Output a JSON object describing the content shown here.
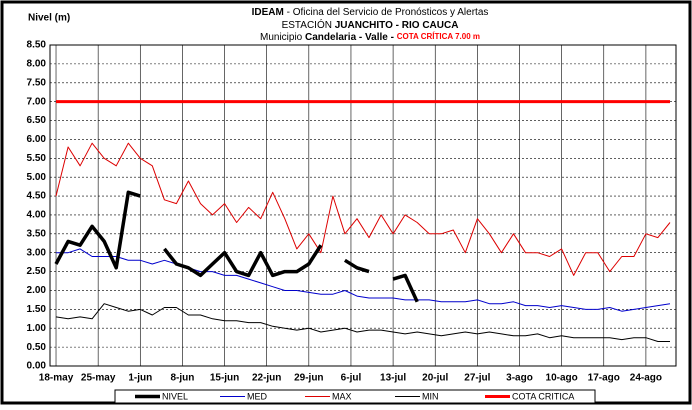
{
  "chart_data": {
    "type": "line",
    "title": {
      "l1a": "IDEAM",
      "l1b": " - Oficina del Servicio de Pronósticos y Alertas",
      "l2a": "ESTACIÓN ",
      "l2b": "JUANCHITO - RIO CAUCA",
      "l3a": "Municipio ",
      "l3b": "Candelaria - Valle",
      "l3c": " - ",
      "l3d": "COTA CRÍTICA 7.00 m"
    },
    "y_label": "Nivel (m)",
    "x": [
      0,
      2,
      4,
      6,
      8,
      10,
      12,
      14,
      16,
      18,
      20,
      22,
      24,
      26,
      28,
      30,
      32,
      34,
      36,
      38,
      40,
      42,
      44,
      46,
      48,
      50,
      52,
      54,
      56,
      58,
      60,
      62,
      64,
      66,
      68,
      70,
      72,
      74,
      76,
      78,
      80,
      82,
      84,
      86,
      88,
      90,
      92,
      94,
      96,
      98,
      100,
      102
    ],
    "xlim": [
      -1,
      103
    ],
    "xticks": [
      {
        "value": 0,
        "label": "18-may"
      },
      {
        "value": 7,
        "label": "25-may"
      },
      {
        "value": 14,
        "label": "1-jun"
      },
      {
        "value": 21,
        "label": "8-jun"
      },
      {
        "value": 28,
        "label": "15-jun"
      },
      {
        "value": 35,
        "label": "22-jun"
      },
      {
        "value": 42,
        "label": "29-jun"
      },
      {
        "value": 49,
        "label": "6-jul"
      },
      {
        "value": 56,
        "label": "13-jul"
      },
      {
        "value": 63,
        "label": "20-jul"
      },
      {
        "value": 70,
        "label": "27-jul"
      },
      {
        "value": 77,
        "label": "3-ago"
      },
      {
        "value": 84,
        "label": "10-ago"
      },
      {
        "value": 91,
        "label": "17-ago"
      },
      {
        "value": 98,
        "label": "24-ago"
      }
    ],
    "ylim": [
      0,
      8.5
    ],
    "yticks": [
      {
        "value": 0,
        "label": "0.00"
      },
      {
        "value": 0.5,
        "label": "0.50"
      },
      {
        "value": 1,
        "label": "1.00"
      },
      {
        "value": 1.5,
        "label": "1.50"
      },
      {
        "value": 2,
        "label": "2.00"
      },
      {
        "value": 2.5,
        "label": "2.50"
      },
      {
        "value": 3,
        "label": "3.00"
      },
      {
        "value": 3.5,
        "label": "3.50"
      },
      {
        "value": 4,
        "label": "4.00"
      },
      {
        "value": 4.5,
        "label": "4.50"
      },
      {
        "value": 5,
        "label": "5.00"
      },
      {
        "value": 5.5,
        "label": "5.50"
      },
      {
        "value": 6,
        "label": "6.00"
      },
      {
        "value": 6.5,
        "label": "6.50"
      },
      {
        "value": 7,
        "label": "7.00"
      },
      {
        "value": 7.5,
        "label": "7.50"
      },
      {
        "value": 8,
        "label": "8.00"
      },
      {
        "value": 8.5,
        "label": "8.50"
      }
    ],
    "grid": true,
    "series": [
      {
        "name": "NIVEL",
        "color": "#000000",
        "values": [
          2.7,
          3.3,
          3.2,
          3.7,
          3.3,
          2.6,
          4.6,
          4.5,
          null,
          3.1,
          2.7,
          2.6,
          2.4,
          2.7,
          3.0,
          2.5,
          2.4,
          3.0,
          2.4,
          2.5,
          2.5,
          2.7,
          3.2,
          null,
          2.8,
          2.6,
          2.5,
          null,
          2.3,
          2.4,
          1.7,
          null,
          null,
          null,
          null,
          null,
          null,
          null,
          null,
          null,
          null,
          null,
          null,
          null,
          null,
          null,
          null,
          null,
          null,
          null,
          null,
          null
        ]
      },
      {
        "name": "MED",
        "color": "#0000cc",
        "values": [
          3.0,
          3.0,
          3.1,
          2.9,
          2.9,
          2.9,
          2.8,
          2.8,
          2.7,
          2.8,
          2.7,
          2.6,
          2.5,
          2.5,
          2.4,
          2.4,
          2.3,
          2.2,
          2.1,
          2.0,
          2.0,
          1.95,
          1.9,
          1.9,
          2.0,
          1.85,
          1.8,
          1.8,
          1.8,
          1.75,
          1.75,
          1.75,
          1.7,
          1.7,
          1.7,
          1.75,
          1.65,
          1.65,
          1.7,
          1.6,
          1.6,
          1.55,
          1.6,
          1.55,
          1.5,
          1.5,
          1.55,
          1.45,
          1.5,
          1.55,
          1.6,
          1.65
        ]
      },
      {
        "name": "MAX",
        "color": "#dd0000",
        "values": [
          4.5,
          5.8,
          5.3,
          5.9,
          5.5,
          5.3,
          5.9,
          5.5,
          5.3,
          4.4,
          4.3,
          4.9,
          4.3,
          4.0,
          4.3,
          3.8,
          4.2,
          3.9,
          4.6,
          3.9,
          3.1,
          3.5,
          3.0,
          4.5,
          3.5,
          3.9,
          3.4,
          4.0,
          3.5,
          4.0,
          3.8,
          3.5,
          3.5,
          3.6,
          3.0,
          3.9,
          3.5,
          3.0,
          3.5,
          3.0,
          3.0,
          2.9,
          3.1,
          2.4,
          3.0,
          3.0,
          2.5,
          2.9,
          2.9,
          3.5,
          3.4,
          3.8
        ]
      },
      {
        "name": "MIN",
        "color": "#000000",
        "values": [
          1.3,
          1.25,
          1.3,
          1.25,
          1.65,
          1.55,
          1.45,
          1.5,
          1.35,
          1.55,
          1.55,
          1.35,
          1.35,
          1.25,
          1.2,
          1.2,
          1.15,
          1.15,
          1.05,
          1.0,
          0.95,
          1.0,
          0.9,
          0.95,
          1.0,
          0.9,
          0.95,
          0.95,
          0.9,
          0.85,
          0.9,
          0.85,
          0.8,
          0.85,
          0.9,
          0.85,
          0.9,
          0.85,
          0.8,
          0.8,
          0.85,
          0.75,
          0.8,
          0.75,
          0.75,
          0.75,
          0.75,
          0.7,
          0.75,
          0.75,
          0.65,
          0.65
        ]
      },
      {
        "name": "COTA CRITICA",
        "color": "#ff0000",
        "values": [
          7,
          7,
          7,
          7,
          7,
          7,
          7,
          7,
          7,
          7,
          7,
          7,
          7,
          7,
          7,
          7,
          7,
          7,
          7,
          7,
          7,
          7,
          7,
          7,
          7,
          7,
          7,
          7,
          7,
          7,
          7,
          7,
          7,
          7,
          7,
          7,
          7,
          7,
          7,
          7,
          7,
          7,
          7,
          7,
          7,
          7,
          7,
          7,
          7,
          7,
          7,
          7
        ]
      }
    ]
  }
}
